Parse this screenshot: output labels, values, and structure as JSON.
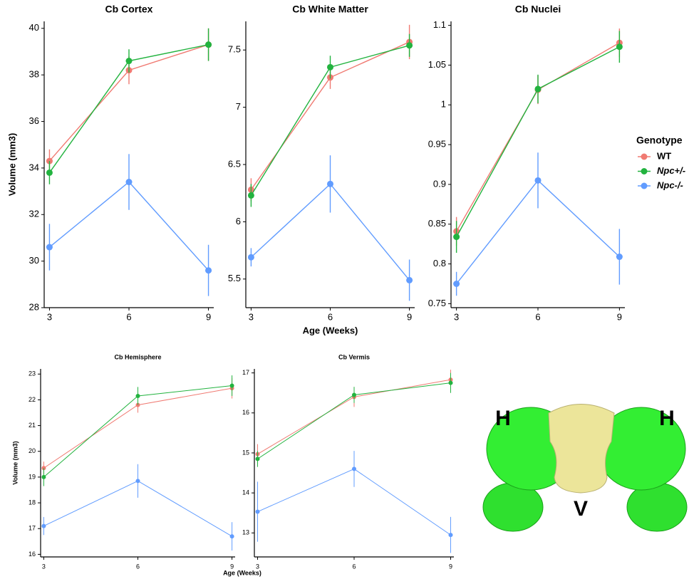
{
  "chart_data": [
    {
      "type": "line",
      "title": "Cb Cortex",
      "ylabel": "Volume (mm3)",
      "legend_title": "Genotype",
      "x": [
        3,
        6,
        9
      ],
      "xlim": [
        2.8,
        9.2
      ],
      "xticks": [
        3,
        6,
        9
      ],
      "ylim": [
        28,
        40.3
      ],
      "yticks": [
        28,
        30,
        32,
        34,
        36,
        38,
        40
      ],
      "series": [
        {
          "name": "WT",
          "color": "#f07a72",
          "values": [
            34.3,
            38.2,
            39.3
          ],
          "errors": [
            0.5,
            0.6,
            0.7
          ]
        },
        {
          "name": "Npc+/-",
          "color": "#22b33f",
          "values": [
            33.8,
            38.6,
            39.3
          ],
          "errors": [
            0.5,
            0.5,
            0.7
          ]
        },
        {
          "name": "Npc-/-",
          "color": "#619cff",
          "values": [
            30.6,
            33.4,
            29.6
          ],
          "errors": [
            1.0,
            1.2,
            1.1
          ]
        }
      ]
    },
    {
      "type": "line",
      "title": "Cb White Matter",
      "xlabel": "Age (Weeks)",
      "x": [
        3,
        6,
        9
      ],
      "xlim": [
        2.8,
        9.2
      ],
      "xticks": [
        3,
        6,
        9
      ],
      "ylim": [
        5.25,
        7.75
      ],
      "yticks": [
        5.5,
        6.0,
        6.5,
        7.0,
        7.5
      ],
      "series": [
        {
          "name": "WT",
          "color": "#f07a72",
          "values": [
            6.28,
            7.26,
            7.57
          ],
          "errors": [
            0.1,
            0.1,
            0.15
          ]
        },
        {
          "name": "Npc+/-",
          "color": "#22b33f",
          "values": [
            6.23,
            7.35,
            7.54
          ],
          "errors": [
            0.1,
            0.1,
            0.1
          ]
        },
        {
          "name": "Npc-/-",
          "color": "#619cff",
          "values": [
            5.69,
            6.33,
            5.49
          ],
          "errors": [
            0.08,
            0.25,
            0.18
          ]
        }
      ]
    },
    {
      "type": "line",
      "title": "Cb Nuclei",
      "x": [
        3,
        6,
        9
      ],
      "xlim": [
        2.8,
        9.2
      ],
      "xticks": [
        3,
        6,
        9
      ],
      "ylim": [
        0.745,
        1.105
      ],
      "yticks": [
        0.75,
        0.8,
        0.85,
        0.9,
        0.95,
        1.0,
        1.05,
        1.1
      ],
      "series": [
        {
          "name": "WT",
          "color": "#f07a72",
          "values": [
            0.841,
            1.019,
            1.078
          ],
          "errors": [
            0.018,
            0.018,
            0.018
          ]
        },
        {
          "name": "Npc+/-",
          "color": "#22b33f",
          "values": [
            0.834,
            1.02,
            1.073
          ],
          "errors": [
            0.02,
            0.018,
            0.02
          ]
        },
        {
          "name": "Npc-/-",
          "color": "#619cff",
          "values": [
            0.775,
            0.905,
            0.809
          ],
          "errors": [
            0.015,
            0.035,
            0.035
          ]
        }
      ]
    },
    {
      "type": "line",
      "title": "Cb Hemisphere",
      "ylabel": "Volume (mm3)",
      "x": [
        3,
        6,
        9
      ],
      "xlim": [
        2.9,
        9.1
      ],
      "xticks": [
        3,
        6,
        9
      ],
      "ylim": [
        15.9,
        23.2
      ],
      "yticks": [
        16,
        17,
        18,
        19,
        20,
        21,
        22,
        23
      ],
      "series": [
        {
          "name": "WT",
          "color": "#f07a72",
          "values": [
            19.35,
            21.8,
            22.45
          ],
          "errors": [
            0.25,
            0.3,
            0.4
          ]
        },
        {
          "name": "Npc+/-",
          "color": "#22b33f",
          "values": [
            19.0,
            22.15,
            22.55
          ],
          "errors": [
            0.35,
            0.35,
            0.4
          ]
        },
        {
          "name": "Npc-/-",
          "color": "#619cff",
          "values": [
            17.1,
            18.85,
            16.7
          ],
          "errors": [
            0.35,
            0.65,
            0.55
          ]
        }
      ]
    },
    {
      "type": "line",
      "title": "Cb Vermis",
      "xlabel": "Age (Weeks)",
      "x": [
        3,
        6,
        9
      ],
      "xlim": [
        2.9,
        9.1
      ],
      "xticks": [
        3,
        6,
        9
      ],
      "ylim": [
        12.4,
        17.1
      ],
      "yticks": [
        13,
        14,
        15,
        16,
        17
      ],
      "series": [
        {
          "name": "WT",
          "color": "#f07a72",
          "values": [
            14.97,
            16.4,
            16.83
          ],
          "errors": [
            0.25,
            0.25,
            0.25
          ]
        },
        {
          "name": "Npc+/-",
          "color": "#22b33f",
          "values": [
            14.85,
            16.45,
            16.75
          ],
          "errors": [
            0.2,
            0.2,
            0.25
          ]
        },
        {
          "name": "Npc-/-",
          "color": "#619cff",
          "values": [
            13.53,
            14.6,
            12.95
          ],
          "errors": [
            0.75,
            0.45,
            0.45
          ]
        }
      ]
    }
  ],
  "illustration": {
    "labels": [
      "H",
      "H",
      "V"
    ]
  }
}
